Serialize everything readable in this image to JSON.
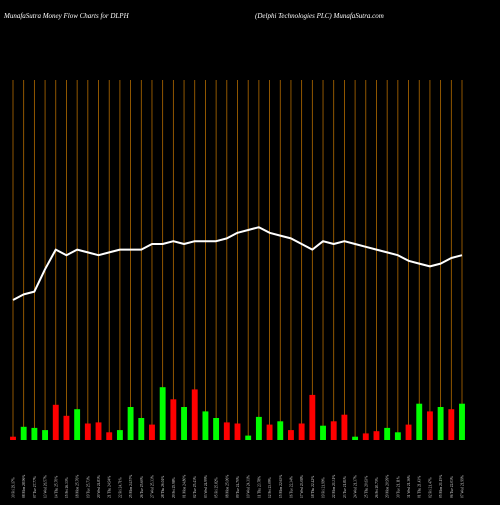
{
  "header": {
    "left_title": "MunafaSutra  Money Flow  Charts for DLPH",
    "right_title": "(Delphi   Technologies PLC) MunafaSutra.com"
  },
  "colors": {
    "background": "#000000",
    "grid": "#b36b00",
    "line": "#ffffff",
    "up": "#00ff00",
    "down": "#ff0000"
  },
  "chart_data": {
    "type": "bar",
    "line_scale": [
      0,
      100
    ],
    "volume_scale": [
      0,
      100
    ],
    "grid": true,
    "categories": [
      "30 Fri 29.17%",
      "08 Mon 28.96%",
      "07 Tue 27.77%",
      "13 Wed 26.57%",
      "14 Thu 25.70%",
      "15 Fri 26.33%",
      "18 Mon 25.76%",
      "19 Tue 25.73%",
      "20 Wed 24.83%",
      "21 Thu 24.94%",
      "22 Fri 24.71%",
      "25 Mon 24.57%",
      "26 Tue 25.60%",
      "27 Wed 25.33%",
      "28 Thu 26.04%",
      "29 Fri 25.98%",
      "01 Mon 24.80%",
      "02 Tue 25.43%",
      "03 Wed 24.99%",
      "05 Fri 25.82%",
      "08 Mon 25.06%",
      "09 Tue 24.70%",
      "10 Wed 24.31%",
      "11 Thu 23.78%",
      "12 Fri 23.09%",
      "15 Mon 22.63%",
      "16 Tue 22.34%",
      "17 Wed 23.08%",
      "18 Thu 22.42%",
      "19 Fri 21.99%",
      "22 Mon 21.31%",
      "23 Tue 21.81%",
      "24 Wed 21.37%",
      "25 Thu 20.63%",
      "26 Fri 20.73%",
      "29 Mon 20.99%",
      "30 Tue 21.11%",
      "31 Wed 21.36%",
      "01 Thu 21.43%",
      "02 Fri 21.47%",
      "05 Mon 21.15%",
      "06 Tue 22.03%",
      "07 Wed 21.99%"
    ],
    "series": [
      {
        "type": "line",
        "values": [
          50,
          52,
          53,
          61,
          68,
          66,
          68,
          67,
          66,
          67,
          68,
          68,
          68,
          70,
          70,
          71,
          70,
          71,
          71,
          71,
          72,
          74,
          75,
          76,
          74,
          73,
          72,
          70,
          68,
          71,
          70,
          71,
          70,
          69,
          68,
          67,
          66,
          64,
          63,
          62,
          63,
          65,
          66
        ]
      },
      {
        "type": "bar",
        "values": [
          3,
          12,
          11,
          9,
          32,
          22,
          28,
          15,
          16,
          7,
          9,
          30,
          20,
          14,
          48,
          37,
          30,
          46,
          26,
          20,
          16,
          15,
          4,
          21,
          14,
          17,
          9,
          15,
          41,
          13,
          17,
          23,
          3,
          6,
          8,
          11,
          7,
          14,
          33,
          26,
          30,
          28,
          33
        ],
        "directions": [
          "down",
          "up",
          "up",
          "up",
          "down",
          "down",
          "up",
          "down",
          "down",
          "down",
          "up",
          "up",
          "up",
          "down",
          "up",
          "down",
          "up",
          "down",
          "up",
          "up",
          "down",
          "down",
          "up",
          "up",
          "down",
          "up",
          "down",
          "down",
          "down",
          "up",
          "down",
          "down",
          "up",
          "down",
          "down",
          "up",
          "up",
          "down",
          "up",
          "down",
          "up",
          "down",
          "up"
        ]
      }
    ]
  }
}
